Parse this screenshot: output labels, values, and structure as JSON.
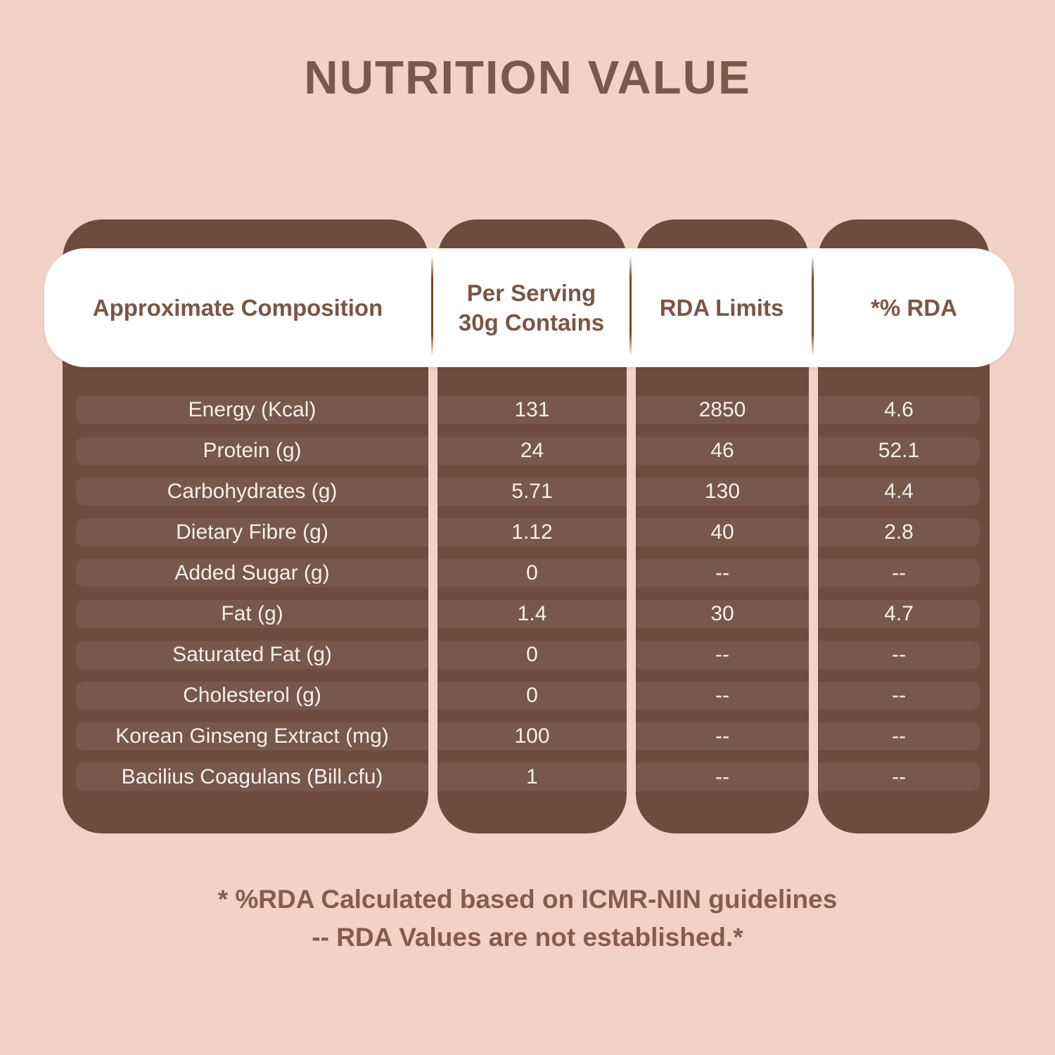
{
  "title": "NUTRITION VALUE",
  "colors": {
    "background": "#f1d2c4",
    "column_brown": "#6d4c3e",
    "row_pill_brown": "#77584a",
    "header_band": "#ffffff",
    "header_text": "#7c5544",
    "title_text": "#7b584a",
    "value_text": "#f7f0ea",
    "footnote_text": "#875c4d",
    "divider_brown": "#7a4a28"
  },
  "table": {
    "headers": {
      "composition": "Approximate Composition",
      "per_serving": "Per Serving\n30g Contains",
      "rda_limits": "RDA Limits",
      "rda_pct": "*% RDA"
    },
    "rows": [
      {
        "label": "Energy (Kcal)",
        "per_serving": "131",
        "rda_limit": "2850",
        "rda_pct": "4.6"
      },
      {
        "label": "Protein (g)",
        "per_serving": "24",
        "rda_limit": "46",
        "rda_pct": "52.1"
      },
      {
        "label": "Carbohydrates (g)",
        "per_serving": "5.71",
        "rda_limit": "130",
        "rda_pct": "4.4"
      },
      {
        "label": "Dietary Fibre (g)",
        "per_serving": "1.12",
        "rda_limit": "40",
        "rda_pct": "2.8"
      },
      {
        "label": "Added Sugar (g)",
        "per_serving": "0",
        "rda_limit": "--",
        "rda_pct": "--"
      },
      {
        "label": "Fat (g)",
        "per_serving": "1.4",
        "rda_limit": "30",
        "rda_pct": "4.7"
      },
      {
        "label": "Saturated Fat (g)",
        "per_serving": "0",
        "rda_limit": "--",
        "rda_pct": "--"
      },
      {
        "label": "Cholesterol (g)",
        "per_serving": "0",
        "rda_limit": "--",
        "rda_pct": "--"
      },
      {
        "label": "Korean Ginseng Extract (mg)",
        "per_serving": "100",
        "rda_limit": "--",
        "rda_pct": "--"
      },
      {
        "label": "Bacilius Coagulans (Bill.cfu)",
        "per_serving": "1",
        "rda_limit": "--",
        "rda_pct": "--"
      }
    ]
  },
  "footnotes": {
    "line1": "* %RDA Calculated based on ICMR-NIN guidelines",
    "line2": "-- RDA Values are not established.*"
  }
}
